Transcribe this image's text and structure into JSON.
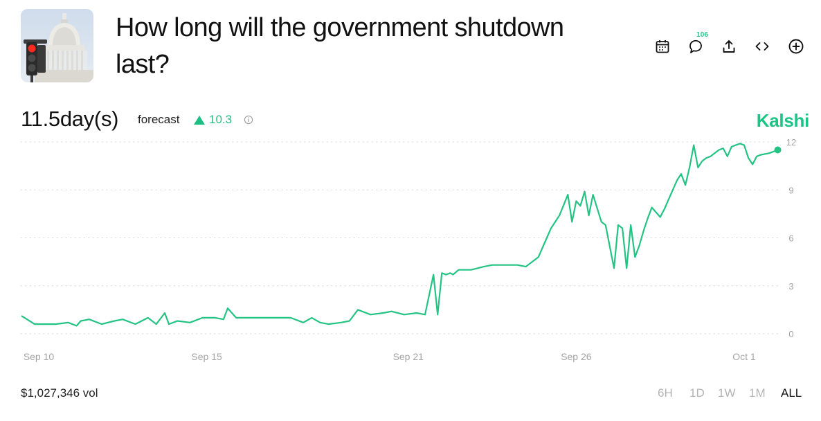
{
  "header": {
    "title": "How long will the government shutdown last?",
    "image_alt": "US Capitol dome with a red traffic light",
    "actions": [
      {
        "name": "calendar-icon"
      },
      {
        "name": "comment-icon",
        "count": "106"
      },
      {
        "name": "share-icon"
      },
      {
        "name": "embed-icon"
      },
      {
        "name": "add-icon"
      }
    ]
  },
  "summary": {
    "forecast_value": "11.5day(s)",
    "forecast_label": "forecast",
    "change": "10.3",
    "change_direction": "up",
    "brand": "Kalshi"
  },
  "colors": {
    "series": "#23c483",
    "brand": "#1cc486",
    "change": "#1fbf84",
    "grid": "#d8d8d8",
    "tick": "#a3a3a3"
  },
  "chart_data": {
    "type": "line",
    "title": "",
    "xlabel": "",
    "ylabel": "",
    "ylim": [
      0,
      12
    ],
    "yticks": [
      "0",
      "3",
      "6",
      "9",
      "12"
    ],
    "xticks": [
      {
        "label": "Sep 10",
        "x": "2025-09-10"
      },
      {
        "label": "Sep 15",
        "x": "2025-09-15"
      },
      {
        "label": "Sep 21",
        "x": "2025-09-21"
      },
      {
        "label": "Sep 26",
        "x": "2025-09-26"
      },
      {
        "label": "Oct 1",
        "x": "2025-10-01"
      }
    ],
    "grid": "horizontal-dotted",
    "series": [
      {
        "name": "",
        "x": [
          "2025-09-09T12:00",
          "2025-09-09T21:00",
          "2025-09-10T03:00",
          "2025-09-10T12:00",
          "2025-09-10T21:00",
          "2025-09-11T03:00",
          "2025-09-11T06:00",
          "2025-09-11T12:00",
          "2025-09-11T21:00",
          "2025-09-12T06:00",
          "2025-09-12T12:00",
          "2025-09-12T21:00",
          "2025-09-13T06:00",
          "2025-09-13T12:00",
          "2025-09-13T18:00",
          "2025-09-13T21:00",
          "2025-09-14T03:00",
          "2025-09-14T12:00",
          "2025-09-14T21:00",
          "2025-09-15T06:00",
          "2025-09-15T12:00",
          "2025-09-15T15:00",
          "2025-09-15T21:00",
          "2025-09-16T06:00",
          "2025-09-16T12:00",
          "2025-09-16T21:00",
          "2025-09-17T06:00",
          "2025-09-17T12:00",
          "2025-09-17T21:00",
          "2025-09-18T03:00",
          "2025-09-18T09:00",
          "2025-09-18T15:00",
          "2025-09-19T00:00",
          "2025-09-19T06:00",
          "2025-09-19T12:00",
          "2025-09-19T21:00",
          "2025-09-20T06:00",
          "2025-09-20T12:00",
          "2025-09-20T21:00",
          "2025-09-21T06:00",
          "2025-09-21T12:00",
          "2025-09-21T18:00",
          "2025-09-21T21:00",
          "2025-09-22T00:00",
          "2025-09-22T03:00",
          "2025-09-22T06:00",
          "2025-09-22T08:00",
          "2025-09-22T12:00",
          "2025-09-22T21:00",
          "2025-09-23T06:00",
          "2025-09-23T12:00",
          "2025-09-23T21:00",
          "2025-09-24T06:00",
          "2025-09-24T12:00",
          "2025-09-24T21:00",
          "2025-09-25T03:00",
          "2025-09-25T06:00",
          "2025-09-25T12:00",
          "2025-09-25T18:00",
          "2025-09-25T21:00",
          "2025-09-26T00:00",
          "2025-09-26T03:00",
          "2025-09-26T06:00",
          "2025-09-26T09:00",
          "2025-09-26T12:00",
          "2025-09-26T18:00",
          "2025-09-26T21:00",
          "2025-09-27T03:00",
          "2025-09-27T06:00",
          "2025-09-27T09:00",
          "2025-09-27T12:00",
          "2025-09-27T15:00",
          "2025-09-27T18:00",
          "2025-09-27T21:00",
          "2025-09-28T00:00",
          "2025-09-28T03:00",
          "2025-09-28T06:00",
          "2025-09-28T12:00",
          "2025-09-28T15:00",
          "2025-09-28T18:00",
          "2025-09-29T00:00",
          "2025-09-29T03:00",
          "2025-09-29T06:00",
          "2025-09-29T09:00",
          "2025-09-29T12:00",
          "2025-09-29T15:00",
          "2025-09-29T18:00",
          "2025-09-29T21:00",
          "2025-09-30T00:00",
          "2025-09-30T06:00",
          "2025-09-30T09:00",
          "2025-09-30T12:00",
          "2025-09-30T15:00",
          "2025-09-30T21:00",
          "2025-10-01T00:00",
          "2025-10-01T03:00",
          "2025-10-01T06:00",
          "2025-10-01T09:00",
          "2025-10-01T12:00",
          "2025-10-01T18:00",
          "2025-10-02T00:00"
        ],
        "y": [
          1.1,
          0.6,
          0.6,
          0.6,
          0.7,
          0.5,
          0.8,
          0.9,
          0.6,
          0.8,
          0.9,
          0.6,
          1.0,
          0.6,
          1.3,
          0.6,
          0.8,
          0.7,
          1.0,
          1.0,
          0.9,
          1.6,
          1.0,
          1.0,
          1.0,
          1.0,
          1.0,
          1.0,
          0.7,
          1.0,
          0.7,
          0.6,
          0.7,
          0.8,
          1.5,
          1.2,
          1.3,
          1.4,
          1.2,
          1.3,
          1.2,
          3.7,
          1.2,
          3.8,
          3.7,
          3.8,
          3.7,
          4.0,
          4.0,
          4.2,
          4.3,
          4.3,
          4.3,
          4.2,
          4.8,
          6.0,
          6.6,
          7.4,
          8.7,
          7.0,
          8.3,
          8.0,
          8.9,
          7.4,
          8.7,
          7.0,
          6.8,
          4.1,
          6.8,
          6.6,
          4.1,
          6.8,
          4.8,
          5.5,
          6.4,
          7.2,
          7.9,
          7.3,
          7.8,
          8.4,
          9.6,
          10.0,
          9.3,
          10.4,
          11.8,
          10.4,
          10.8,
          11.0,
          11.1,
          11.5,
          11.6,
          11.1,
          11.7,
          11.9,
          11.8,
          11.0,
          10.6,
          11.1,
          11.2,
          11.3,
          11.5
        ]
      }
    ],
    "end_marker": true
  },
  "footer": {
    "volume": "$1,027,346 vol",
    "ranges": [
      {
        "label": "6H",
        "active": false
      },
      {
        "label": "1D",
        "active": false
      },
      {
        "label": "1W",
        "active": false
      },
      {
        "label": "1M",
        "active": false
      },
      {
        "label": "ALL",
        "active": true
      }
    ]
  }
}
